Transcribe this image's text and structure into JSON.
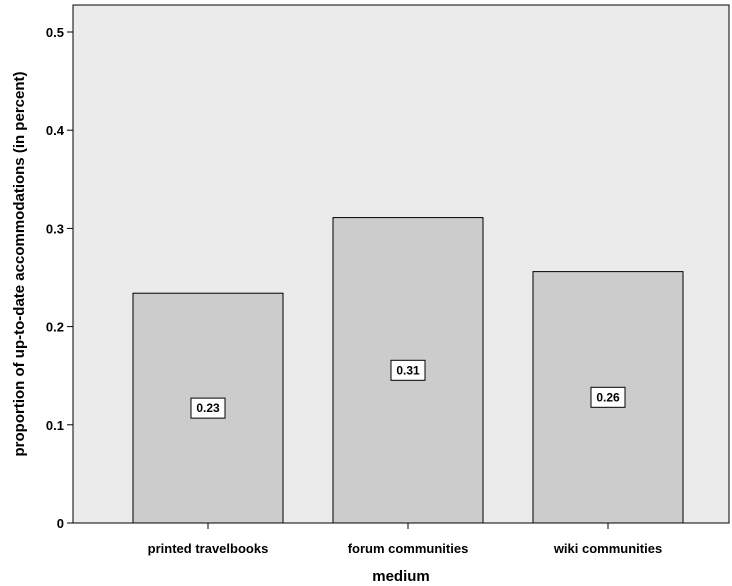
{
  "chart_data": {
    "type": "bar",
    "categories": [
      "printed travelbooks",
      "forum communities",
      "wiki communities"
    ],
    "values": [
      0.234,
      0.311,
      0.256
    ],
    "data_labels": [
      "0.23",
      "0.31",
      "0.26"
    ],
    "xlabel": "medium",
    "ylabel": "proportion of up-to-date accommodations (in percent)",
    "ylim": [
      0,
      0.53
    ],
    "yticks": [
      0,
      0.1,
      0.2,
      0.3,
      0.4,
      0.5
    ],
    "ytick_labels": [
      "0",
      "0.1",
      "0.2",
      "0.3",
      "0.4",
      "0.5"
    ],
    "grid": false,
    "colors": {
      "plot_background": "#ebebeb",
      "bar_fill": "#cccccc",
      "bar_stroke": "#000000",
      "label_box": "#ffffff"
    }
  }
}
